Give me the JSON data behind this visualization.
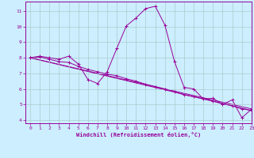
{
  "xlabel": "Windchill (Refroidissement éolien,°C)",
  "bg_color": "#cceeff",
  "line_color": "#990099",
  "grid_color": "#aacccc",
  "xlim": [
    -0.5,
    23
  ],
  "ylim": [
    3.8,
    11.6
  ],
  "yticks": [
    4,
    5,
    6,
    7,
    8,
    9,
    10,
    11
  ],
  "xticks": [
    0,
    1,
    2,
    3,
    4,
    5,
    6,
    7,
    8,
    9,
    10,
    11,
    12,
    13,
    14,
    15,
    16,
    17,
    18,
    19,
    20,
    21,
    22,
    23
  ],
  "main_x": [
    0,
    1,
    2,
    3,
    4,
    5,
    6,
    7,
    8,
    9,
    10,
    11,
    12,
    13,
    14,
    15,
    16,
    17,
    18,
    19,
    20,
    21,
    22,
    23
  ],
  "main_y": [
    8.0,
    8.1,
    8.0,
    7.9,
    8.1,
    7.6,
    6.6,
    6.35,
    7.1,
    8.6,
    10.05,
    10.55,
    11.15,
    11.3,
    10.1,
    7.75,
    6.1,
    6.0,
    5.35,
    5.4,
    5.0,
    5.3,
    4.15,
    4.7
  ],
  "line2_x": [
    0,
    1,
    2,
    3,
    4,
    5,
    6,
    7,
    8,
    9,
    10,
    11,
    12,
    13,
    14,
    15,
    16,
    17,
    18,
    19,
    20,
    21,
    22,
    23
  ],
  "line2_y": [
    8.0,
    8.05,
    7.9,
    7.75,
    7.7,
    7.45,
    7.25,
    7.1,
    6.95,
    6.85,
    6.65,
    6.5,
    6.3,
    6.15,
    5.98,
    5.82,
    5.62,
    5.5,
    5.38,
    5.22,
    5.05,
    4.92,
    4.72,
    4.62
  ],
  "line3_x": [
    0,
    23
  ],
  "line3_y": [
    8.0,
    4.62
  ],
  "line4_x": [
    0,
    23
  ],
  "line4_y": [
    8.0,
    4.72
  ]
}
